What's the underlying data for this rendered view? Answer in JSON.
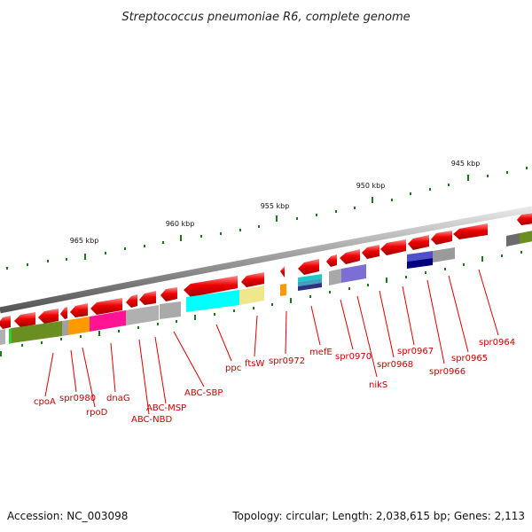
{
  "title": "Streptococcus pneumoniae R6, complete genome",
  "tick_labels": [
    "945 kbp",
    "950 kbp",
    "955 kbp",
    "960 kbp",
    "965 kbp"
  ],
  "gene_labels": [
    "spr0964",
    "spr0965",
    "spr0966",
    "spr0967",
    "spr0968",
    "nikS",
    "spr0970",
    "mefE",
    "spr0972",
    "ftsW",
    "ppc",
    "ABC-SBP",
    "ABC-MSP",
    "ABC-NBD",
    "dnaG",
    "rpoD",
    "spr0980",
    "cpoA"
  ],
  "footer": {
    "accession": "Accession: NC_003098",
    "summary": "Topology: circular; Length: 2,038,615 bp; Genes: 2,113"
  },
  "colors": {
    "backbone": "#8f8f8f",
    "gene_arrow": "#ee0000",
    "tick": "#1a7a1a",
    "label": "#cc0000"
  }
}
